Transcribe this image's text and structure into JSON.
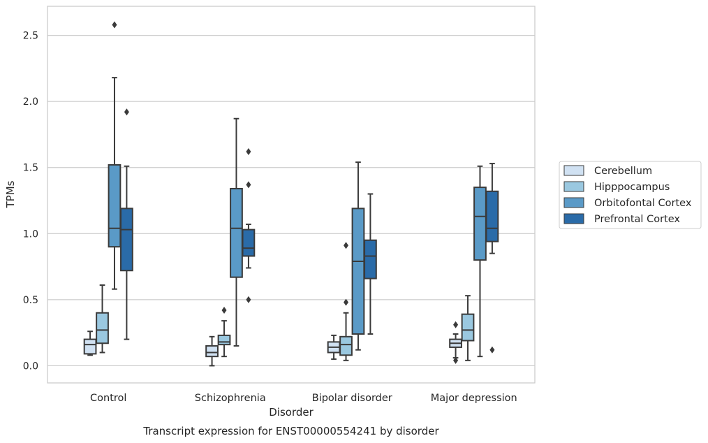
{
  "chart_data": {
    "type": "boxplot",
    "caption": "Transcript expression for ENST00000554241 by disorder",
    "xlabel": "Disorder",
    "ylabel": "TPMs",
    "ylim": [
      -0.13,
      2.72
    ],
    "yticks": [
      0.0,
      0.5,
      1.0,
      1.5,
      2.0,
      2.5
    ],
    "ytick_labels": [
      "0.0",
      "0.5",
      "1.0",
      "1.5",
      "2.0",
      "2.5"
    ],
    "grid": "horizontal",
    "legend_position": "right",
    "categories": [
      "Control",
      "Schizophrenia",
      "Bipolar disorder",
      "Major depression"
    ],
    "series": [
      {
        "name": "Cerebellum",
        "color": "#d0e1f2",
        "boxes": [
          {
            "whisker_low": 0.08,
            "q1": 0.09,
            "median": 0.16,
            "q3": 0.2,
            "whisker_high": 0.26,
            "outliers": []
          },
          {
            "whisker_low": 0.0,
            "q1": 0.07,
            "median": 0.1,
            "q3": 0.15,
            "whisker_high": 0.22,
            "outliers": []
          },
          {
            "whisker_low": 0.05,
            "q1": 0.1,
            "median": 0.14,
            "q3": 0.18,
            "whisker_high": 0.23,
            "outliers": []
          },
          {
            "whisker_low": 0.06,
            "q1": 0.14,
            "median": 0.17,
            "q3": 0.2,
            "whisker_high": 0.24,
            "outliers": [
              0.31,
              0.04
            ]
          }
        ]
      },
      {
        "name": "Hipppocampus",
        "color": "#9ac8e0",
        "boxes": [
          {
            "whisker_low": 0.1,
            "q1": 0.17,
            "median": 0.27,
            "q3": 0.4,
            "whisker_high": 0.61,
            "outliers": []
          },
          {
            "whisker_low": 0.07,
            "q1": 0.16,
            "median": 0.18,
            "q3": 0.23,
            "whisker_high": 0.34,
            "outliers": [
              0.42
            ]
          },
          {
            "whisker_low": 0.04,
            "q1": 0.08,
            "median": 0.16,
            "q3": 0.22,
            "whisker_high": 0.4,
            "outliers": [
              0.91,
              0.48
            ]
          },
          {
            "whisker_low": 0.04,
            "q1": 0.19,
            "median": 0.27,
            "q3": 0.39,
            "whisker_high": 0.53,
            "outliers": []
          }
        ]
      },
      {
        "name": "Orbitofontal Cortex",
        "color": "#5a9ac7",
        "boxes": [
          {
            "whisker_low": 0.58,
            "q1": 0.9,
            "median": 1.04,
            "q3": 1.52,
            "whisker_high": 2.18,
            "outliers": [
              2.58
            ]
          },
          {
            "whisker_low": 0.15,
            "q1": 0.67,
            "median": 1.04,
            "q3": 1.34,
            "whisker_high": 1.87,
            "outliers": []
          },
          {
            "whisker_low": 0.12,
            "q1": 0.24,
            "median": 0.79,
            "q3": 1.19,
            "whisker_high": 1.54,
            "outliers": []
          },
          {
            "whisker_low": 0.07,
            "q1": 0.8,
            "median": 1.13,
            "q3": 1.35,
            "whisker_high": 1.51,
            "outliers": []
          }
        ]
      },
      {
        "name": "Prefrontal Cortex",
        "color": "#2a6ba8",
        "boxes": [
          {
            "whisker_low": 0.2,
            "q1": 0.72,
            "median": 1.03,
            "q3": 1.19,
            "whisker_high": 1.51,
            "outliers": [
              1.92
            ]
          },
          {
            "whisker_low": 0.74,
            "q1": 0.83,
            "median": 0.89,
            "q3": 1.03,
            "whisker_high": 1.07,
            "outliers": [
              1.62,
              1.37,
              0.5
            ]
          },
          {
            "whisker_low": 0.24,
            "q1": 0.66,
            "median": 0.83,
            "q3": 0.95,
            "whisker_high": 1.3,
            "outliers": []
          },
          {
            "whisker_low": 0.85,
            "q1": 0.94,
            "median": 1.04,
            "q3": 1.32,
            "whisker_high": 1.53,
            "outliers": [
              0.12
            ]
          }
        ]
      }
    ]
  }
}
